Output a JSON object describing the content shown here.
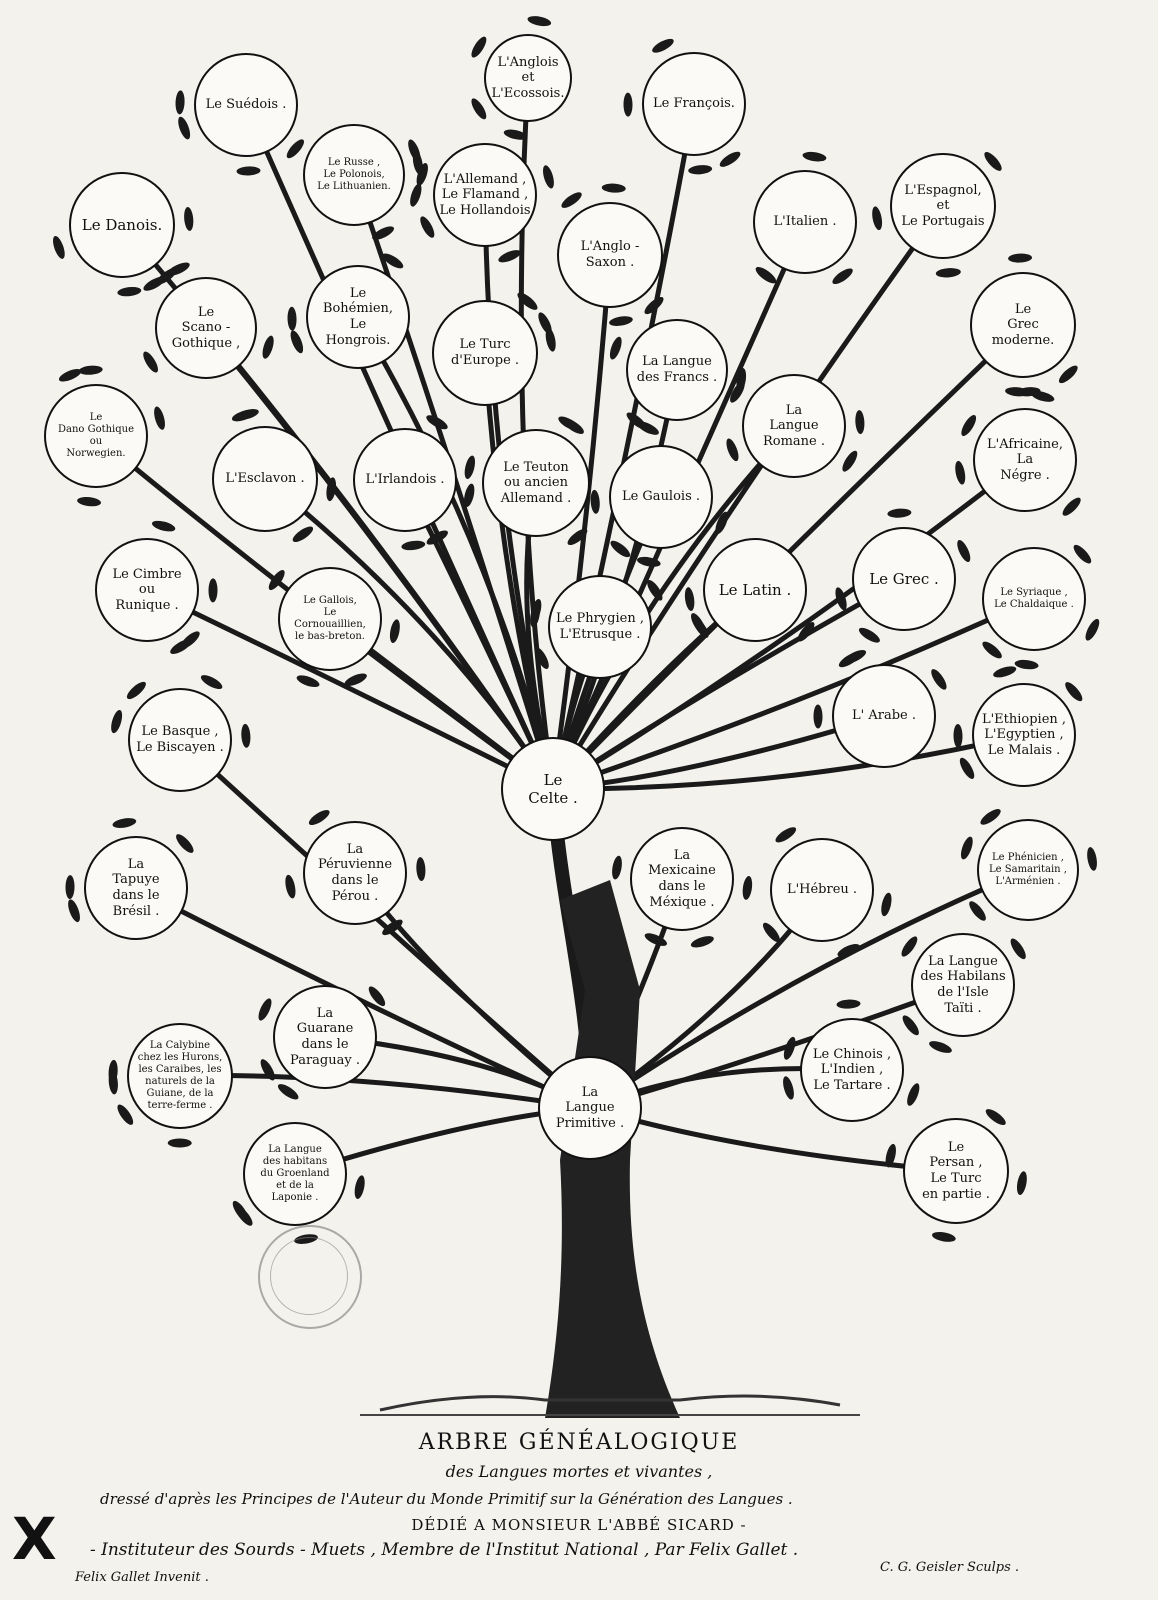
{
  "tree": {
    "nodes": [
      {
        "id": "suedois",
        "lines": [
          "Le Suédois ."
        ]
      },
      {
        "id": "anglois",
        "lines": [
          "L'Anglois",
          "et",
          "L'Ecossois."
        ]
      },
      {
        "id": "francois",
        "lines": [
          "Le François."
        ]
      },
      {
        "id": "russe",
        "lines": [
          "Le Russe ,",
          "Le Polonois,",
          "Le Lithuanien."
        ]
      },
      {
        "id": "allemand",
        "lines": [
          "L'Allemand ,",
          "Le Flamand ,",
          "Le Hollandois"
        ]
      },
      {
        "id": "danois",
        "lines": [
          "Le Danois."
        ]
      },
      {
        "id": "italien",
        "lines": [
          "L'Italien ."
        ]
      },
      {
        "id": "espagnol",
        "lines": [
          "L'Espagnol,",
          "et",
          "Le Portugais"
        ]
      },
      {
        "id": "anglosaxon",
        "lines": [
          "L'Anglo -",
          "Saxon ."
        ]
      },
      {
        "id": "scanogothique",
        "lines": [
          "Le",
          "Scano -",
          "Gothique ,"
        ]
      },
      {
        "id": "bohemien",
        "lines": [
          "Le",
          "Bohémien,",
          "Le",
          "Hongrois."
        ]
      },
      {
        "id": "grecmoderne",
        "lines": [
          "Le",
          "Grec",
          "moderne."
        ]
      },
      {
        "id": "turceurope",
        "lines": [
          "Le Turc",
          "d'Europe ."
        ]
      },
      {
        "id": "languefrancs",
        "lines": [
          "La Langue",
          "des Francs ."
        ]
      },
      {
        "id": "danogothique",
        "lines": [
          "Le",
          "Dano Gothique",
          "ou",
          "Norwegien."
        ]
      },
      {
        "id": "languromane",
        "lines": [
          "La",
          "Langue",
          "Romane ."
        ]
      },
      {
        "id": "africaine",
        "lines": [
          "L'Africaine,",
          "La",
          "Négre ."
        ]
      },
      {
        "id": "esclavon",
        "lines": [
          "L'Esclavon ."
        ]
      },
      {
        "id": "irlandois",
        "lines": [
          "L'Irlandois ."
        ]
      },
      {
        "id": "teuton",
        "lines": [
          "Le Teuton",
          "ou ancien",
          "Allemand ."
        ]
      },
      {
        "id": "gaulois",
        "lines": [
          "Le Gaulois ."
        ]
      },
      {
        "id": "cimbre",
        "lines": [
          "Le Cimbre",
          "ou",
          "Runique ."
        ]
      },
      {
        "id": "latin",
        "lines": [
          "Le Latin ."
        ]
      },
      {
        "id": "grec",
        "lines": [
          "Le Grec ."
        ]
      },
      {
        "id": "syriaque",
        "lines": [
          "Le Syriaque ,",
          "Le Chaldaique ."
        ]
      },
      {
        "id": "gallois",
        "lines": [
          "Le Gallois,",
          "Le",
          "Cornouaillien,",
          "le bas-breton."
        ]
      },
      {
        "id": "phrygien",
        "lines": [
          "Le Phrygien ,",
          "L'Etrusque ."
        ]
      },
      {
        "id": "arabe",
        "lines": [
          "L' Arabe ."
        ]
      },
      {
        "id": "ethiopien",
        "lines": [
          "L'Ethiopien ,",
          "L'Egyptien ,",
          "Le Malais ."
        ]
      },
      {
        "id": "basque",
        "lines": [
          "Le Basque ,",
          "Le Biscayen ."
        ]
      },
      {
        "id": "celte",
        "lines": [
          "Le",
          "Celte ."
        ]
      },
      {
        "id": "phenicien",
        "lines": [
          "Le Phénicien ,",
          "Le Samaritain ,",
          "L'Arménien ."
        ]
      },
      {
        "id": "tapuye",
        "lines": [
          "La",
          "Tapuye",
          "dans le",
          "Brésil ."
        ]
      },
      {
        "id": "peruvienne",
        "lines": [
          "La",
          "Péruvienne",
          "dans le",
          "Pérou ."
        ]
      },
      {
        "id": "mexicaine",
        "lines": [
          "La",
          "Mexicaine",
          "dans le",
          "Méxique ."
        ]
      },
      {
        "id": "hebreu",
        "lines": [
          "L'Hébreu ."
        ]
      },
      {
        "id": "taiti",
        "lines": [
          "La Langue",
          "des Habilans",
          "de l'Isle",
          "Taïti ."
        ]
      },
      {
        "id": "guarane",
        "lines": [
          "La",
          "Guarane",
          "dans le",
          "Paraguay ."
        ]
      },
      {
        "id": "calybine",
        "lines": [
          "La Calybine",
          "chez les Hurons,",
          "les Caraibes, les",
          "naturels de la",
          "Guiane, de la",
          "terre-ferme ."
        ]
      },
      {
        "id": "chinois",
        "lines": [
          "Le Chinois ,",
          "L'Indien ,",
          "Le Tartare ."
        ]
      },
      {
        "id": "primitive",
        "lines": [
          "La",
          "Langue",
          "Primitive ."
        ]
      },
      {
        "id": "groenland",
        "lines": [
          "La Langue",
          "des habitans",
          "du Groenland",
          "et de la",
          "Laponie ."
        ]
      },
      {
        "id": "persan",
        "lines": [
          "Le",
          "Persan ,",
          "Le Turc",
          "en partie ."
        ]
      }
    ]
  },
  "caption": {
    "title": "ARBRE GÉNÉALOGIQUE",
    "subtitle": "des Langues mortes et vivantes ,",
    "drafted": "dressé d'après les Principes de l'Auteur du Monde Primitif sur la Génération des Langues .",
    "dedicated": "DÉDIÉ A MONSIEUR L'ABBÉ SICARD -",
    "institution": "- Instituteur des Sourds - Muets , Membre de l'Institut National , Par Felix Gallet .",
    "inventor": "Felix Gallet Invenit .",
    "sculptor": "C. G. Geisler Sculps ."
  },
  "marks": {
    "corner": "X"
  },
  "colors": {
    "ink": "#111111",
    "paper": "#f4f2ec",
    "circle_fill": "#fbfaf6",
    "leaf": "#1a1a1a"
  }
}
